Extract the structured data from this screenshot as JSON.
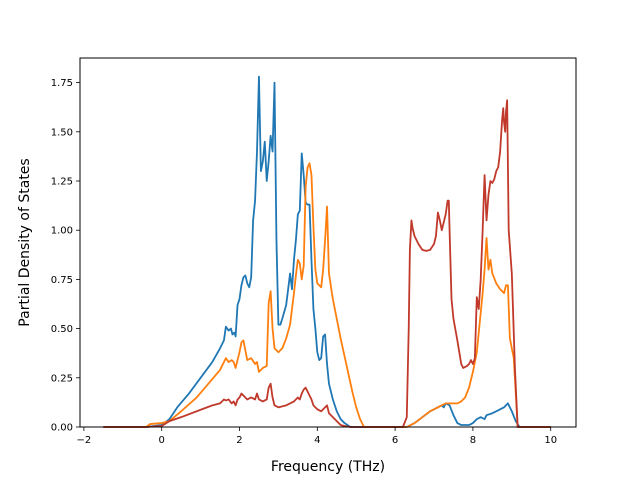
{
  "chart_data": {
    "type": "line",
    "title": "",
    "xlabel": "Frequency (THz)",
    "ylabel": "Partial Density of States",
    "xlim": [
      -2.1,
      10.65
    ],
    "ylim": [
      0,
      1.875
    ],
    "xticks": [
      -2,
      0,
      2,
      4,
      6,
      8,
      10
    ],
    "xtick_labels": [
      "−2",
      "0",
      "2",
      "4",
      "6",
      "8",
      "10"
    ],
    "yticks": [
      0,
      0.25,
      0.5,
      0.75,
      1.0,
      1.25,
      1.5,
      1.75
    ],
    "ytick_labels": [
      "0.00",
      "0.25",
      "0.50",
      "0.75",
      "1.00",
      "1.25",
      "1.50",
      "1.75"
    ],
    "grid": false,
    "legend": "none",
    "series": [
      {
        "color": "#1f77b4",
        "points": [
          [
            -1.5,
            0
          ],
          [
            -0.4,
            0
          ],
          [
            0,
            0.01
          ],
          [
            0.2,
            0.04
          ],
          [
            0.4,
            0.1
          ],
          [
            0.7,
            0.17
          ],
          [
            1.0,
            0.25
          ],
          [
            1.3,
            0.33
          ],
          [
            1.5,
            0.4
          ],
          [
            1.6,
            0.44
          ],
          [
            1.65,
            0.51
          ],
          [
            1.72,
            0.49
          ],
          [
            1.78,
            0.5
          ],
          [
            1.82,
            0.47
          ],
          [
            1.87,
            0.48
          ],
          [
            1.9,
            0.46
          ],
          [
            1.95,
            0.62
          ],
          [
            2.0,
            0.65
          ],
          [
            2.05,
            0.72
          ],
          [
            2.1,
            0.76
          ],
          [
            2.15,
            0.77
          ],
          [
            2.2,
            0.73
          ],
          [
            2.25,
            0.71
          ],
          [
            2.3,
            0.76
          ],
          [
            2.35,
            1.05
          ],
          [
            2.4,
            1.15
          ],
          [
            2.45,
            1.4
          ],
          [
            2.5,
            1.78
          ],
          [
            2.55,
            1.3
          ],
          [
            2.6,
            1.35
          ],
          [
            2.65,
            1.45
          ],
          [
            2.7,
            1.25
          ],
          [
            2.75,
            1.35
          ],
          [
            2.8,
            1.48
          ],
          [
            2.85,
            1.4
          ],
          [
            2.9,
            1.75
          ],
          [
            2.95,
            0.95
          ],
          [
            3.0,
            0.52
          ],
          [
            3.05,
            0.52
          ],
          [
            3.1,
            0.55
          ],
          [
            3.2,
            0.62
          ],
          [
            3.3,
            0.78
          ],
          [
            3.35,
            0.7
          ],
          [
            3.4,
            0.85
          ],
          [
            3.45,
            0.95
          ],
          [
            3.5,
            1.08
          ],
          [
            3.55,
            1.1
          ],
          [
            3.6,
            1.39
          ],
          [
            3.65,
            1.28
          ],
          [
            3.7,
            1.14
          ],
          [
            3.75,
            1.13
          ],
          [
            3.8,
            1.13
          ],
          [
            3.85,
            0.85
          ],
          [
            3.9,
            0.6
          ],
          [
            3.95,
            0.5
          ],
          [
            4.0,
            0.38
          ],
          [
            4.05,
            0.34
          ],
          [
            4.1,
            0.35
          ],
          [
            4.15,
            0.46
          ],
          [
            4.2,
            0.47
          ],
          [
            4.25,
            0.32
          ],
          [
            4.3,
            0.22
          ],
          [
            4.4,
            0.14
          ],
          [
            4.5,
            0.08
          ],
          [
            4.6,
            0.04
          ],
          [
            4.7,
            0.02
          ],
          [
            4.85,
            0
          ],
          [
            6.3,
            0
          ],
          [
            6.5,
            0.02
          ],
          [
            6.7,
            0.05
          ],
          [
            6.9,
            0.08
          ],
          [
            7.1,
            0.1
          ],
          [
            7.2,
            0.11
          ],
          [
            7.25,
            0.1
          ],
          [
            7.3,
            0.12
          ],
          [
            7.4,
            0.11
          ],
          [
            7.5,
            0.06
          ],
          [
            7.6,
            0.02
          ],
          [
            7.7,
            0.01
          ],
          [
            7.8,
            0.01
          ],
          [
            7.9,
            0.01
          ],
          [
            8.0,
            0.02
          ],
          [
            8.1,
            0.04
          ],
          [
            8.2,
            0.05
          ],
          [
            8.3,
            0.04
          ],
          [
            8.35,
            0.06
          ],
          [
            8.5,
            0.07
          ],
          [
            8.6,
            0.08
          ],
          [
            8.7,
            0.09
          ],
          [
            8.8,
            0.1
          ],
          [
            8.9,
            0.12
          ],
          [
            9.0,
            0.08
          ],
          [
            9.1,
            0.03
          ],
          [
            9.2,
            0
          ],
          [
            10.0,
            0
          ]
        ]
      },
      {
        "color": "#ff7f0e",
        "points": [
          [
            -1.5,
            0
          ],
          [
            -0.4,
            0
          ],
          [
            -0.3,
            0.015
          ],
          [
            0,
            0.02
          ],
          [
            0.2,
            0.03
          ],
          [
            0.5,
            0.08
          ],
          [
            0.9,
            0.15
          ],
          [
            1.2,
            0.22
          ],
          [
            1.5,
            0.29
          ],
          [
            1.65,
            0.35
          ],
          [
            1.72,
            0.33
          ],
          [
            1.8,
            0.34
          ],
          [
            1.85,
            0.33
          ],
          [
            1.9,
            0.3
          ],
          [
            1.95,
            0.34
          ],
          [
            2.0,
            0.38
          ],
          [
            2.05,
            0.43
          ],
          [
            2.1,
            0.44
          ],
          [
            2.15,
            0.39
          ],
          [
            2.2,
            0.34
          ],
          [
            2.3,
            0.35
          ],
          [
            2.4,
            0.32
          ],
          [
            2.45,
            0.33
          ],
          [
            2.5,
            0.28
          ],
          [
            2.6,
            0.3
          ],
          [
            2.7,
            0.31
          ],
          [
            2.75,
            0.63
          ],
          [
            2.8,
            0.69
          ],
          [
            2.85,
            0.5
          ],
          [
            2.9,
            0.4
          ],
          [
            3.0,
            0.38
          ],
          [
            3.1,
            0.4
          ],
          [
            3.2,
            0.45
          ],
          [
            3.3,
            0.52
          ],
          [
            3.4,
            0.68
          ],
          [
            3.45,
            0.77
          ],
          [
            3.5,
            0.85
          ],
          [
            3.55,
            0.83
          ],
          [
            3.6,
            0.75
          ],
          [
            3.65,
            0.82
          ],
          [
            3.7,
            1.22
          ],
          [
            3.75,
            1.32
          ],
          [
            3.8,
            1.34
          ],
          [
            3.85,
            1.28
          ],
          [
            3.9,
            1.02
          ],
          [
            3.95,
            0.8
          ],
          [
            4.0,
            0.73
          ],
          [
            4.1,
            0.71
          ],
          [
            4.15,
            0.8
          ],
          [
            4.2,
            0.95
          ],
          [
            4.25,
            1.12
          ],
          [
            4.3,
            0.78
          ],
          [
            4.4,
            0.65
          ],
          [
            4.5,
            0.55
          ],
          [
            4.6,
            0.45
          ],
          [
            4.7,
            0.36
          ],
          [
            4.8,
            0.27
          ],
          [
            4.9,
            0.18
          ],
          [
            5.0,
            0.1
          ],
          [
            5.1,
            0.04
          ],
          [
            5.2,
            0
          ],
          [
            6.3,
            0
          ],
          [
            6.5,
            0.02
          ],
          [
            6.7,
            0.05
          ],
          [
            6.9,
            0.08
          ],
          [
            7.1,
            0.1
          ],
          [
            7.2,
            0.11
          ],
          [
            7.3,
            0.12
          ],
          [
            7.5,
            0.12
          ],
          [
            7.6,
            0.12
          ],
          [
            7.7,
            0.13
          ],
          [
            7.8,
            0.15
          ],
          [
            7.9,
            0.2
          ],
          [
            8.0,
            0.28
          ],
          [
            8.1,
            0.38
          ],
          [
            8.15,
            0.48
          ],
          [
            8.2,
            0.58
          ],
          [
            8.25,
            0.68
          ],
          [
            8.3,
            0.8
          ],
          [
            8.35,
            0.96
          ],
          [
            8.4,
            0.8
          ],
          [
            8.45,
            0.85
          ],
          [
            8.5,
            0.78
          ],
          [
            8.6,
            0.73
          ],
          [
            8.7,
            0.7
          ],
          [
            8.8,
            0.68
          ],
          [
            8.85,
            0.72
          ],
          [
            8.9,
            0.72
          ],
          [
            8.95,
            0.45
          ],
          [
            9.05,
            0.35
          ],
          [
            9.15,
            0
          ],
          [
            10.0,
            0
          ]
        ]
      },
      {
        "color": "#c0392b",
        "points": [
          [
            -1.5,
            0
          ],
          [
            -0.4,
            0
          ],
          [
            0,
            0.005
          ],
          [
            0.2,
            0.03
          ],
          [
            0.5,
            0.05
          ],
          [
            0.9,
            0.08
          ],
          [
            1.3,
            0.11
          ],
          [
            1.5,
            0.12
          ],
          [
            1.6,
            0.14
          ],
          [
            1.65,
            0.135
          ],
          [
            1.72,
            0.14
          ],
          [
            1.8,
            0.12
          ],
          [
            1.85,
            0.13
          ],
          [
            1.9,
            0.11
          ],
          [
            1.95,
            0.14
          ],
          [
            2.0,
            0.15
          ],
          [
            2.05,
            0.17
          ],
          [
            2.1,
            0.16
          ],
          [
            2.15,
            0.15
          ],
          [
            2.2,
            0.14
          ],
          [
            2.3,
            0.15
          ],
          [
            2.4,
            0.14
          ],
          [
            2.45,
            0.17
          ],
          [
            2.5,
            0.14
          ],
          [
            2.6,
            0.13
          ],
          [
            2.7,
            0.14
          ],
          [
            2.75,
            0.2
          ],
          [
            2.8,
            0.22
          ],
          [
            2.85,
            0.15
          ],
          [
            2.9,
            0.11
          ],
          [
            3.0,
            0.1
          ],
          [
            3.2,
            0.11
          ],
          [
            3.4,
            0.13
          ],
          [
            3.5,
            0.15
          ],
          [
            3.55,
            0.14
          ],
          [
            3.6,
            0.17
          ],
          [
            3.65,
            0.19
          ],
          [
            3.7,
            0.2
          ],
          [
            3.75,
            0.18
          ],
          [
            3.8,
            0.16
          ],
          [
            3.85,
            0.14
          ],
          [
            3.9,
            0.11
          ],
          [
            4.0,
            0.09
          ],
          [
            4.1,
            0.08
          ],
          [
            4.2,
            0.1
          ],
          [
            4.25,
            0.11
          ],
          [
            4.3,
            0.07
          ],
          [
            4.4,
            0.05
          ],
          [
            4.5,
            0.03
          ],
          [
            4.6,
            0.01
          ],
          [
            4.7,
            0.005
          ],
          [
            4.85,
            0
          ],
          [
            6.2,
            0
          ],
          [
            6.3,
            0.05
          ],
          [
            6.35,
            0.5
          ],
          [
            6.38,
            0.9
          ],
          [
            6.42,
            1.05
          ],
          [
            6.45,
            1.01
          ],
          [
            6.5,
            0.97
          ],
          [
            6.6,
            0.93
          ],
          [
            6.7,
            0.9
          ],
          [
            6.8,
            0.895
          ],
          [
            6.9,
            0.9
          ],
          [
            7.0,
            0.93
          ],
          [
            7.05,
            0.97
          ],
          [
            7.1,
            1.09
          ],
          [
            7.15,
            1.05
          ],
          [
            7.2,
            1.0
          ],
          [
            7.3,
            1.08
          ],
          [
            7.35,
            1.15
          ],
          [
            7.38,
            1.15
          ],
          [
            7.4,
            1.0
          ],
          [
            7.45,
            0.65
          ],
          [
            7.5,
            0.55
          ],
          [
            7.6,
            0.44
          ],
          [
            7.7,
            0.32
          ],
          [
            7.75,
            0.3
          ],
          [
            7.85,
            0.31
          ],
          [
            7.9,
            0.32
          ],
          [
            7.95,
            0.34
          ],
          [
            8.0,
            0.32
          ],
          [
            8.05,
            0.35
          ],
          [
            8.1,
            0.66
          ],
          [
            8.15,
            0.6
          ],
          [
            8.2,
            0.75
          ],
          [
            8.25,
            1.0
          ],
          [
            8.3,
            1.28
          ],
          [
            8.35,
            1.05
          ],
          [
            8.4,
            1.18
          ],
          [
            8.45,
            1.25
          ],
          [
            8.5,
            1.24
          ],
          [
            8.55,
            1.26
          ],
          [
            8.6,
            1.3
          ],
          [
            8.65,
            1.32
          ],
          [
            8.7,
            1.4
          ],
          [
            8.75,
            1.56
          ],
          [
            8.78,
            1.62
          ],
          [
            8.8,
            1.55
          ],
          [
            8.83,
            1.5
          ],
          [
            8.85,
            1.6
          ],
          [
            8.88,
            1.66
          ],
          [
            8.92,
            1.0
          ],
          [
            9.0,
            0.78
          ],
          [
            9.08,
            0.3
          ],
          [
            9.15,
            0
          ],
          [
            10.0,
            0
          ]
        ]
      }
    ]
  }
}
